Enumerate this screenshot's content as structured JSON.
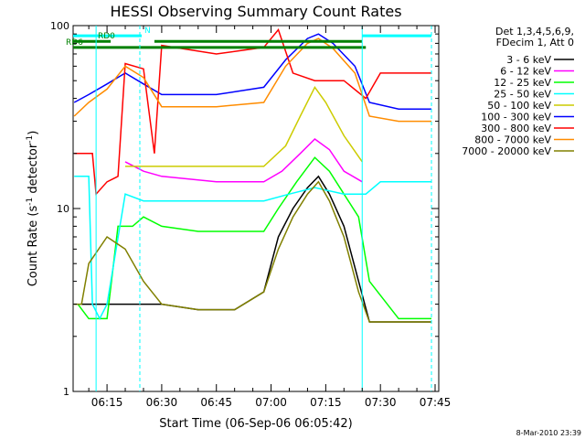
{
  "chart_data": {
    "type": "line",
    "title": "HESSI Observing Summary Count Rates",
    "xlabel": "Start Time (06-Sep-06 06:05:42)",
    "ylabel_main": "Count Rate (s",
    "ylabel_sup1": "-1",
    "ylabel_mid": " detector",
    "ylabel_sup2": "-1",
    "ylabel_end": ")",
    "y_scale": "log",
    "ylim": [
      1,
      100
    ],
    "xlim": [
      "06:05:42",
      "07:46:00"
    ],
    "x_ticks": [
      "06:15",
      "06:30",
      "06:45",
      "07:00",
      "07:15",
      "07:30",
      "07:45"
    ],
    "y_tick_labels": [
      "1",
      "10",
      "100"
    ],
    "grid": false,
    "legend_header": [
      "Det 1,3,4,5,6,9,",
      "FDecim 1, Att 0"
    ],
    "legend_position": "right",
    "series": [
      {
        "name": "3 - 6 keV",
        "color": "#000000",
        "points": [
          [
            "06:08",
            3
          ],
          [
            "06:12",
            3
          ],
          [
            "06:20",
            3
          ],
          [
            "06:25",
            3
          ],
          [
            "06:30",
            3
          ],
          [
            "06:40",
            2.8
          ],
          [
            "06:50",
            2.8
          ],
          [
            "06:58",
            3.5
          ],
          [
            "07:02",
            7
          ],
          [
            "07:06",
            10
          ],
          [
            "07:10",
            13
          ],
          [
            "07:13",
            15
          ],
          [
            "07:16",
            12
          ],
          [
            "07:20",
            8
          ],
          [
            "07:24",
            4
          ],
          [
            "07:27",
            2.4
          ],
          [
            "07:35",
            2.4
          ],
          [
            "07:44",
            2.4
          ]
        ]
      },
      {
        "name": "6 - 12 keV",
        "color": "#ff00ff",
        "points": [
          [
            "06:20",
            18
          ],
          [
            "06:25",
            16
          ],
          [
            "06:30",
            15
          ],
          [
            "06:45",
            14
          ],
          [
            "06:58",
            14
          ],
          [
            "07:03",
            16
          ],
          [
            "07:08",
            20
          ],
          [
            "07:12",
            24
          ],
          [
            "07:16",
            21
          ],
          [
            "07:20",
            16
          ],
          [
            "07:25",
            14
          ]
        ]
      },
      {
        "name": "12 - 25 keV",
        "color": "#00ff00",
        "points": [
          [
            "06:07",
            3
          ],
          [
            "06:10",
            2.5
          ],
          [
            "06:15",
            2.5
          ],
          [
            "06:18",
            8
          ],
          [
            "06:22",
            8
          ],
          [
            "06:25",
            9
          ],
          [
            "06:30",
            8
          ],
          [
            "06:40",
            7.5
          ],
          [
            "06:58",
            7.5
          ],
          [
            "07:02",
            10
          ],
          [
            "07:07",
            14
          ],
          [
            "07:12",
            19
          ],
          [
            "07:16",
            16
          ],
          [
            "07:20",
            12
          ],
          [
            "07:24",
            9
          ],
          [
            "07:27",
            4
          ],
          [
            "07:35",
            2.5
          ],
          [
            "07:44",
            2.5
          ]
        ]
      },
      {
        "name": "25 - 50 keV",
        "color": "#00ffff",
        "points": [
          [
            "06:06",
            15
          ],
          [
            "06:10",
            15
          ],
          [
            "06:11",
            3
          ],
          [
            "06:13",
            2.5
          ],
          [
            "06:15",
            3
          ],
          [
            "06:20",
            12
          ],
          [
            "06:25",
            11
          ],
          [
            "06:30",
            11
          ],
          [
            "06:45",
            11
          ],
          [
            "06:58",
            11
          ],
          [
            "07:05",
            12
          ],
          [
            "07:12",
            13
          ],
          [
            "07:20",
            12
          ],
          [
            "07:26",
            12
          ],
          [
            "07:30",
            14
          ],
          [
            "07:44",
            14
          ]
        ]
      },
      {
        "name": "50 - 100 keV",
        "color": "#cccc00",
        "points": [
          [
            "06:20",
            17
          ],
          [
            "06:30",
            17
          ],
          [
            "06:45",
            17
          ],
          [
            "06:58",
            17
          ],
          [
            "07:04",
            22
          ],
          [
            "07:08",
            32
          ],
          [
            "07:12",
            46
          ],
          [
            "07:15",
            38
          ],
          [
            "07:20",
            25
          ],
          [
            "07:25",
            18
          ]
        ]
      },
      {
        "name": "100 - 300 keV",
        "color": "#0000ff",
        "points": [
          [
            "06:06",
            38
          ],
          [
            "06:10",
            42
          ],
          [
            "06:15",
            48
          ],
          [
            "06:20",
            55
          ],
          [
            "06:25",
            48
          ],
          [
            "06:30",
            42
          ],
          [
            "06:45",
            42
          ],
          [
            "06:58",
            46
          ],
          [
            "07:04",
            65
          ],
          [
            "07:10",
            85
          ],
          [
            "07:13",
            90
          ],
          [
            "07:17",
            80
          ],
          [
            "07:23",
            60
          ],
          [
            "07:27",
            38
          ],
          [
            "07:35",
            35
          ],
          [
            "07:44",
            35
          ]
        ]
      },
      {
        "name": "300 - 800 keV",
        "color": "#ff0000",
        "points": [
          [
            "06:06",
            20
          ],
          [
            "06:11",
            20
          ],
          [
            "06:12",
            12
          ],
          [
            "06:15",
            14
          ],
          [
            "06:18",
            15
          ],
          [
            "06:20",
            62
          ],
          [
            "06:25",
            58
          ],
          [
            "06:28",
            20
          ],
          [
            "06:30",
            78
          ],
          [
            "06:45",
            70
          ],
          [
            "06:58",
            76
          ],
          [
            "07:02",
            95
          ],
          [
            "07:06",
            55
          ],
          [
            "07:12",
            50
          ],
          [
            "07:20",
            50
          ],
          [
            "07:26",
            40
          ],
          [
            "07:30",
            55
          ],
          [
            "07:44",
            55
          ]
        ]
      },
      {
        "name": "800 - 7000 keV",
        "color": "#ff8c00",
        "points": [
          [
            "06:06",
            32
          ],
          [
            "06:10",
            38
          ],
          [
            "06:15",
            45
          ],
          [
            "06:20",
            60
          ],
          [
            "06:25",
            52
          ],
          [
            "06:30",
            36
          ],
          [
            "06:45",
            36
          ],
          [
            "06:58",
            38
          ],
          [
            "07:04",
            60
          ],
          [
            "07:10",
            80
          ],
          [
            "07:13",
            85
          ],
          [
            "07:17",
            75
          ],
          [
            "07:23",
            55
          ],
          [
            "07:27",
            32
          ],
          [
            "07:35",
            30
          ],
          [
            "07:44",
            30
          ]
        ]
      },
      {
        "name": "7000 - 20000 keV",
        "color": "#808000",
        "points": [
          [
            "06:06",
            3
          ],
          [
            "06:08",
            3
          ],
          [
            "06:10",
            5
          ],
          [
            "06:15",
            7
          ],
          [
            "06:20",
            6
          ],
          [
            "06:25",
            4
          ],
          [
            "06:30",
            3
          ],
          [
            "06:40",
            2.8
          ],
          [
            "06:50",
            2.8
          ],
          [
            "06:58",
            3.5
          ],
          [
            "07:02",
            6
          ],
          [
            "07:06",
            9
          ],
          [
            "07:10",
            12
          ],
          [
            "07:13",
            14
          ],
          [
            "07:16",
            11
          ],
          [
            "07:20",
            7
          ],
          [
            "07:24",
            3.5
          ],
          [
            "07:27",
            2.4
          ],
          [
            "07:35",
            2.4
          ],
          [
            "07:44",
            2.4
          ]
        ]
      }
    ],
    "flags": [
      {
        "label": "N",
        "color": "#00ffff",
        "value": 88,
        "segments": [
          [
            "06:05:42",
            "06:24:30"
          ],
          [
            "07:25",
            "07:44"
          ]
        ]
      },
      {
        "label": "RD0",
        "color": "#008000",
        "value": 82,
        "segments": [
          [
            "06:05:42",
            "06:16:00"
          ],
          [
            "06:28:00",
            "07:25:00"
          ]
        ]
      },
      {
        "label": "RD6",
        "color": "#008000",
        "value": 76,
        "segments": [
          [
            "06:05:42",
            "07:26:00"
          ]
        ]
      }
    ],
    "vlines": [
      {
        "time": "06:12",
        "style": "solid"
      },
      {
        "time": "06:24",
        "style": "dashed"
      },
      {
        "time": "07:25",
        "style": "solid"
      },
      {
        "time": "07:44",
        "style": "dashed"
      }
    ]
  },
  "footer_date": "8-Mar-2010 23:39"
}
